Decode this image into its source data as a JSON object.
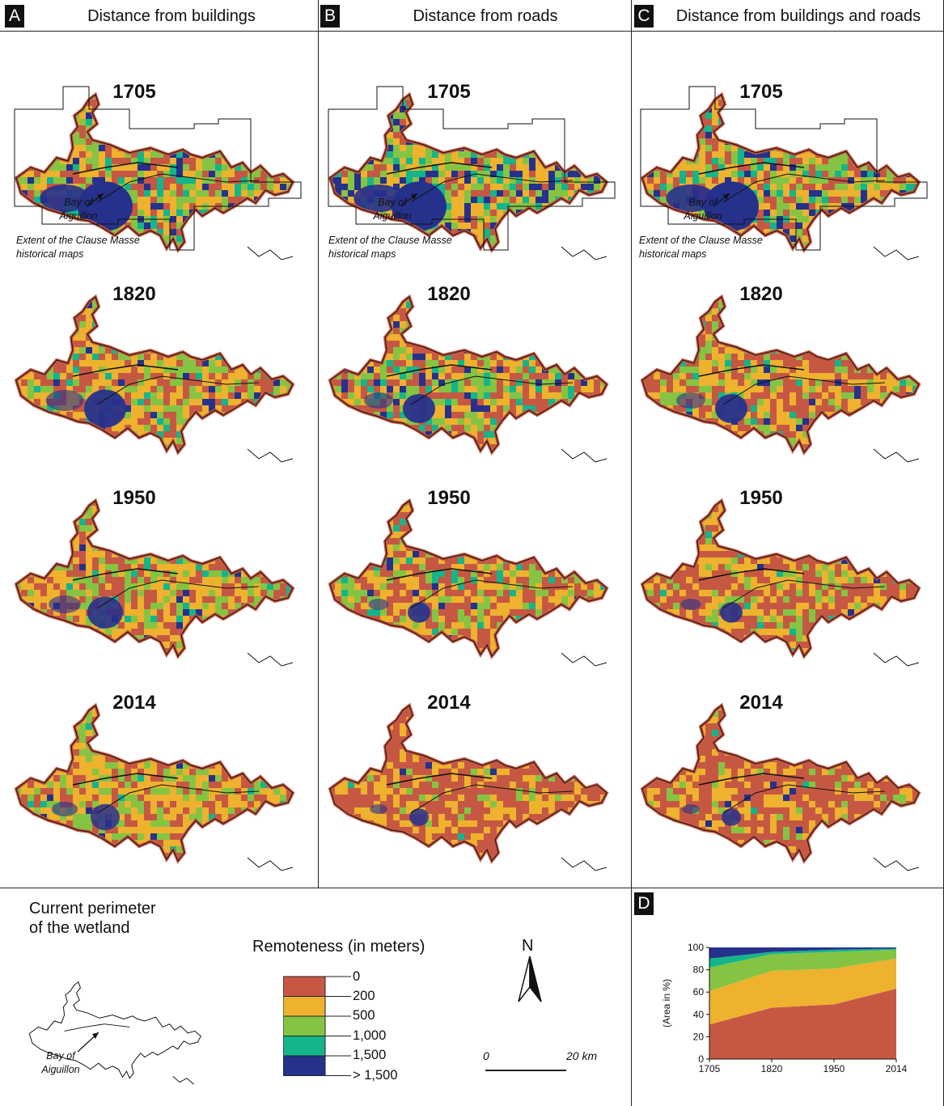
{
  "columns": [
    {
      "letter": "A",
      "title": "Distance from buildings"
    },
    {
      "letter": "B",
      "title": "Distance from roads"
    },
    {
      "letter": "C",
      "title": "Distance from buildings and roads"
    }
  ],
  "years": [
    "1705",
    "1820",
    "1950",
    "2014"
  ],
  "map_annotations": {
    "bay_line1": "Bay of",
    "bay_line2": "Aiguillon",
    "extent_line1": "Extent of the Clause Masse",
    "extent_line2": "historical maps"
  },
  "perimeter": {
    "title_line1": "Current perimeter",
    "title_line2": "of the wetland",
    "bay_line1": "Bay of",
    "bay_line2": "Aiguillon"
  },
  "legend": {
    "title": "Remoteness (in meters)",
    "labels": [
      "0",
      "200",
      "500",
      "1,000",
      "1,500",
      "> 1,500"
    ],
    "colors": [
      "#c65843",
      "#eeb22e",
      "#85c443",
      "#14b58a",
      "#26318c"
    ]
  },
  "north": "N",
  "scale": {
    "start": "0",
    "end": "20 km"
  },
  "panel_d": {
    "letter": "D",
    "chart_data": {
      "type": "area",
      "x": [
        "1705",
        "1820",
        "1950",
        "2014"
      ],
      "ylabel": "(Area in %)",
      "ylim": [
        0,
        100
      ],
      "yticks": [
        "0",
        "20",
        "40",
        "60",
        "80",
        "100"
      ],
      "series": [
        {
          "values": [
            31,
            46,
            49,
            63
          ],
          "color": "#c65843"
        },
        {
          "values": [
            30,
            33,
            32,
            27
          ],
          "color": "#eeb22e"
        },
        {
          "values": [
            21,
            15,
            15,
            8
          ],
          "color": "#85c443"
        },
        {
          "values": [
            8,
            2,
            2,
            1
          ],
          "color": "#14b58a"
        },
        {
          "values": [
            10,
            4,
            2,
            1
          ],
          "color": "#26318c"
        }
      ]
    }
  }
}
